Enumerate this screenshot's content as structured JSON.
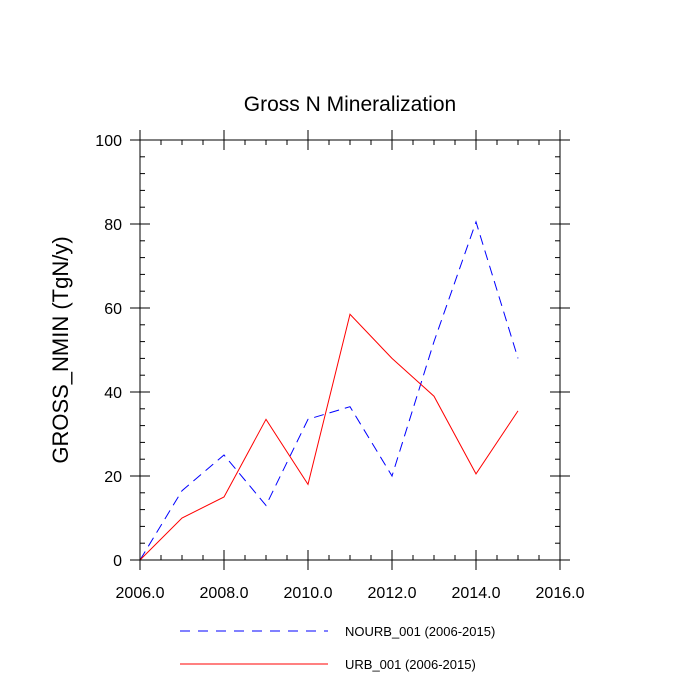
{
  "chart_data": {
    "type": "line",
    "title": "Gross N Mineralization",
    "xlabel": "",
    "ylabel": "GROSS_NMIN  (TgN/y)",
    "xlim": [
      2006,
      2016
    ],
    "ylim": [
      0,
      100
    ],
    "x_ticks": [
      2006,
      2008,
      2010,
      2012,
      2014,
      2016
    ],
    "x_tick_labels": [
      "2006.0",
      "2008.0",
      "2010.0",
      "2012.0",
      "2014.0",
      "2016.0"
    ],
    "y_ticks": [
      0,
      20,
      40,
      60,
      80,
      100
    ],
    "y_tick_labels": [
      "0",
      "20",
      "40",
      "60",
      "80",
      "100"
    ],
    "x": [
      2006,
      2007,
      2008,
      2009,
      2010,
      2011,
      2012,
      2013,
      2014,
      2015
    ],
    "series": [
      {
        "name": "NOURB_001 (2006-2015)",
        "color": "#0000ff",
        "style": "dashed",
        "values": [
          0,
          16.5,
          25,
          13,
          33.5,
          36.5,
          20,
          52,
          80.5,
          48
        ]
      },
      {
        "name": "URB_001 (2006-2015)",
        "color": "#ff0000",
        "style": "solid",
        "values": [
          0,
          10,
          15,
          33.5,
          18,
          58.5,
          48,
          39,
          20.5,
          35.5
        ]
      }
    ],
    "legend_position": "bottom"
  }
}
